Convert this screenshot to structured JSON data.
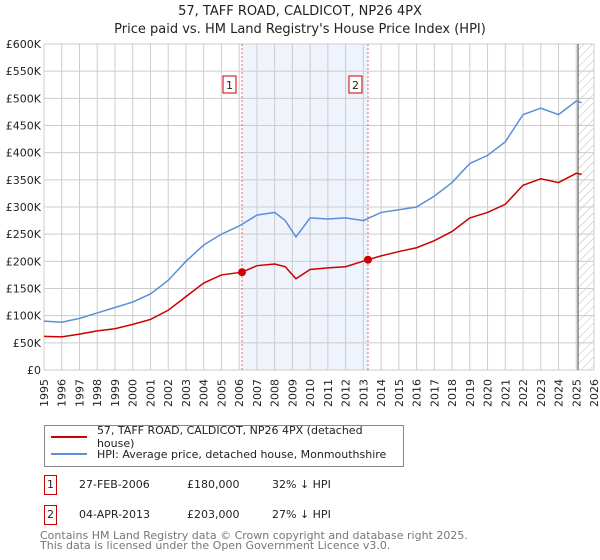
{
  "chart_data": {
    "type": "line",
    "title": "57, TAFF ROAD, CALDICOT, NP26 4PX",
    "subtitle": "Price paid vs. HM Land Registry's House Price Index (HPI)",
    "xlim": [
      1995,
      2026
    ],
    "ylim": [
      0,
      600000
    ],
    "x_ticks": [
      "1995",
      "1996",
      "1997",
      "1998",
      "1999",
      "2000",
      "2001",
      "2002",
      "2003",
      "2004",
      "2005",
      "2006",
      "2007",
      "2008",
      "2009",
      "2010",
      "2011",
      "2012",
      "2013",
      "2014",
      "2015",
      "2016",
      "2017",
      "2018",
      "2019",
      "2020",
      "2021",
      "2022",
      "2023",
      "2024",
      "2025",
      "2026"
    ],
    "y_ticks": [
      {
        "v": 0,
        "label": "£0"
      },
      {
        "v": 50000,
        "label": "£50K"
      },
      {
        "v": 100000,
        "label": "£100K"
      },
      {
        "v": 150000,
        "label": "£150K"
      },
      {
        "v": 200000,
        "label": "£200K"
      },
      {
        "v": 250000,
        "label": "£250K"
      },
      {
        "v": 300000,
        "label": "£300K"
      },
      {
        "v": 350000,
        "label": "£350K"
      },
      {
        "v": 400000,
        "label": "£400K"
      },
      {
        "v": 450000,
        "label": "£450K"
      },
      {
        "v": 500000,
        "label": "£500K"
      },
      {
        "v": 550000,
        "label": "£550K"
      },
      {
        "v": 600000,
        "label": "£600K"
      }
    ],
    "grid": true,
    "shaded_range": [
      2006.16,
      2013.26
    ],
    "forecast_from": 2025.1,
    "series": [
      {
        "name": "57, TAFF ROAD, CALDICOT, NP26 4PX (detached house)",
        "color": "#cc0000",
        "x": [
          1995,
          1996,
          1997,
          1998,
          1999,
          2000,
          2001,
          2002,
          2003,
          2004,
          2005,
          2006.16,
          2007,
          2008,
          2008.6,
          2009.2,
          2010,
          2011,
          2012,
          2013.26,
          2014,
          2015,
          2016,
          2017,
          2018,
          2019,
          2020,
          2021,
          2022,
          2023,
          2024,
          2025,
          2025.3
        ],
        "y": [
          62000,
          61000,
          66000,
          72000,
          76000,
          84000,
          93000,
          110000,
          135000,
          160000,
          175000,
          180000,
          192000,
          195000,
          190000,
          168000,
          185000,
          188000,
          190000,
          203000,
          210000,
          218000,
          225000,
          238000,
          255000,
          280000,
          290000,
          305000,
          340000,
          352000,
          345000,
          362000,
          360000
        ]
      },
      {
        "name": "HPI: Average price, detached house, Monmouthshire",
        "color": "#5b8fd6",
        "x": [
          1995,
          1996,
          1997,
          1998,
          1999,
          2000,
          2001,
          2002,
          2003,
          2004,
          2005,
          2006,
          2007,
          2008,
          2008.6,
          2009.2,
          2010,
          2011,
          2012,
          2013,
          2014,
          2015,
          2016,
          2017,
          2018,
          2019,
          2020,
          2021,
          2022,
          2023,
          2024,
          2025,
          2025.3
        ],
        "y": [
          90000,
          88000,
          95000,
          105000,
          115000,
          125000,
          140000,
          165000,
          200000,
          230000,
          250000,
          265000,
          285000,
          290000,
          275000,
          245000,
          280000,
          278000,
          280000,
          275000,
          290000,
          295000,
          300000,
          320000,
          345000,
          380000,
          395000,
          420000,
          470000,
          482000,
          470000,
          495000,
          492000
        ]
      }
    ],
    "annotations": [
      {
        "label": "1",
        "x": 2006.16,
        "y": 180000
      },
      {
        "label": "2",
        "x": 2013.26,
        "y": 203000
      }
    ]
  },
  "transactions": [
    {
      "num": "1",
      "date": "27-FEB-2006",
      "price": "£180,000",
      "hpi": "32% ↓ HPI"
    },
    {
      "num": "2",
      "date": "04-APR-2013",
      "price": "£203,000",
      "hpi": "27% ↓ HPI"
    }
  ],
  "footer": {
    "line1": "Contains HM Land Registry data © Crown copyright and database right 2025.",
    "line2": "This data is licensed under the Open Government Licence v3.0."
  }
}
